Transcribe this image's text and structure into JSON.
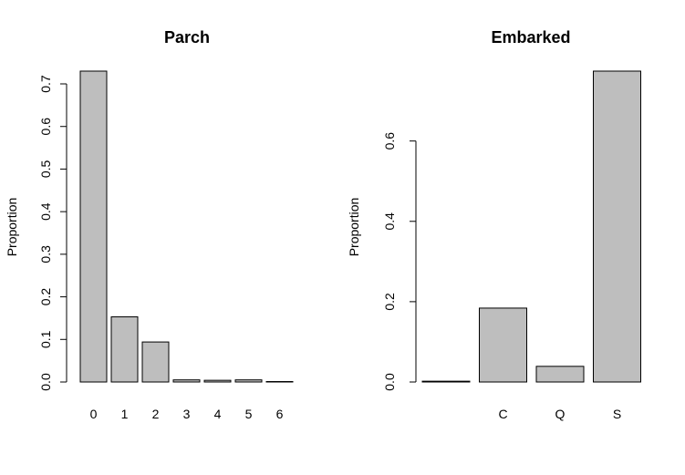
{
  "chart_data": [
    {
      "type": "bar",
      "title": "Parch",
      "xlabel": "",
      "ylabel": "Proportion",
      "categories": [
        "0",
        "1",
        "2",
        "3",
        "4",
        "5",
        "6"
      ],
      "values": [
        0.73,
        0.153,
        0.094,
        0.005,
        0.004,
        0.005,
        0.001
      ],
      "ylim": [
        0,
        0.73
      ],
      "yticks": [
        "0.0",
        "0.1",
        "0.2",
        "0.3",
        "0.4",
        "0.5",
        "0.6",
        "0.7"
      ],
      "bar_color": "#bebebe",
      "grid": false
    },
    {
      "type": "bar",
      "title": "Embarked",
      "xlabel": "",
      "ylabel": "Proportion",
      "categories": [
        "",
        "C",
        "Q",
        "S"
      ],
      "values": [
        0.002,
        0.184,
        0.039,
        0.774
      ],
      "ylim": [
        0,
        0.774
      ],
      "yticks": [
        "0.0",
        "0.2",
        "0.4",
        "0.6"
      ],
      "bar_color": "#bebebe",
      "grid": false
    }
  ]
}
